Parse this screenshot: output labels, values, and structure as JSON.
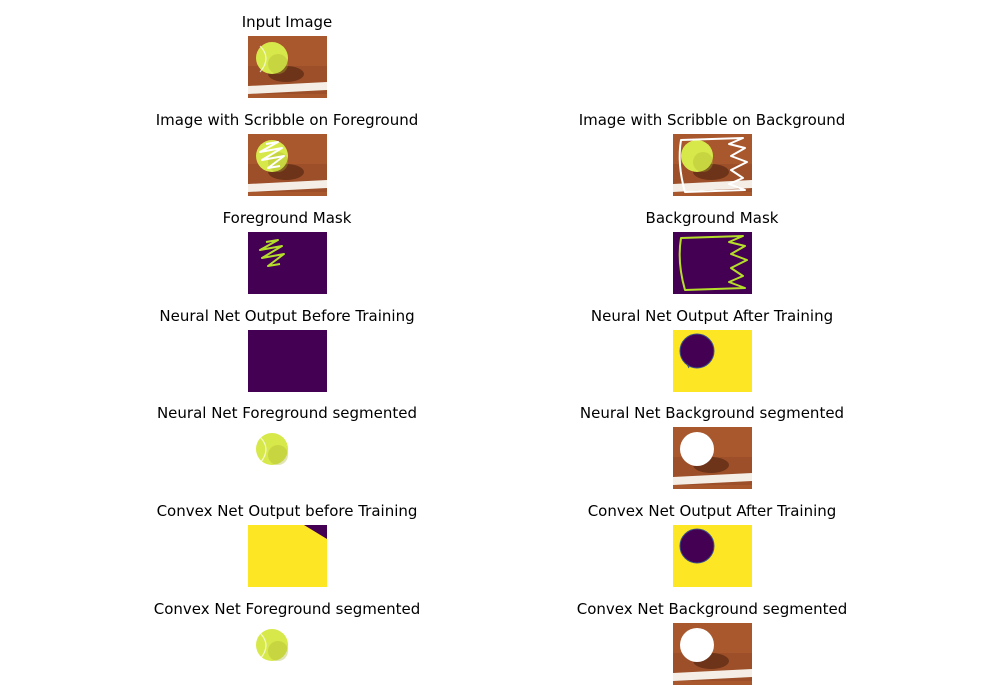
{
  "figure": {
    "panels": [
      {
        "id": "input-image",
        "title": "Input Image"
      },
      {
        "id": "scribble-foreground",
        "title": "Image with Scribble on Foreground"
      },
      {
        "id": "scribble-background",
        "title": "Image with Scribble on Background"
      },
      {
        "id": "foreground-mask",
        "title": "Foreground Mask"
      },
      {
        "id": "background-mask",
        "title": "Background Mask"
      },
      {
        "id": "nn-before",
        "title": "Neural Net Output Before Training"
      },
      {
        "id": "nn-after",
        "title": "Neural Net Output After Training"
      },
      {
        "id": "nn-foreground",
        "title": "Neural Net Foreground segmented"
      },
      {
        "id": "nn-background",
        "title": "Neural Net Background segmented"
      },
      {
        "id": "cn-before",
        "title": "Convex Net Output before Training"
      },
      {
        "id": "cn-after",
        "title": "Convex Net Output After Training"
      },
      {
        "id": "cn-foreground",
        "title": "Convex Net Foreground segmented"
      },
      {
        "id": "cn-background",
        "title": "Convex Net Background segmented"
      }
    ]
  },
  "colors": {
    "clay": "#a9582e",
    "clay_dark": "#7f3d1c",
    "ball": "#d7e84a",
    "ball_shade": "#a9b52e",
    "line_white": "#f4eee6",
    "mask_purple": "#440154",
    "mask_yellow": "#fde725",
    "mask_green": "#b5de2b",
    "scribble": "#ffffff"
  },
  "icons": {
    "clay-court": "tennis clay court texture",
    "tennis-ball": "tennis ball",
    "scribble": "hand-drawn scribble"
  }
}
